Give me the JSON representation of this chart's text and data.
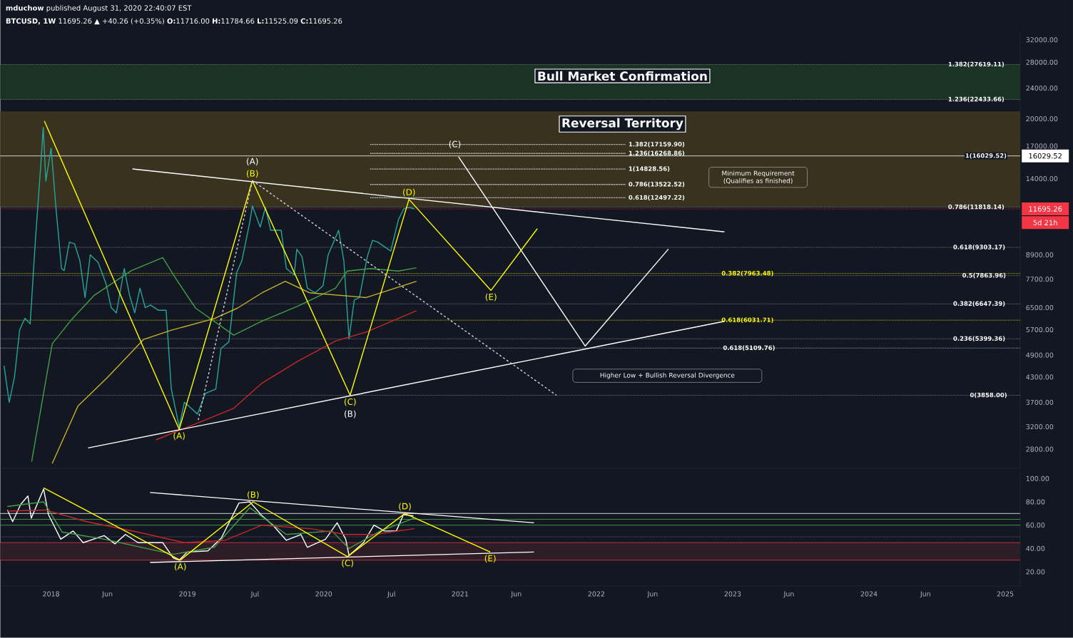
{
  "chart_data": [
    {
      "type": "line",
      "title": "**mduchow** published August 31, 2020 22:40:07 EST",
      "subtitle": "**BTCUSD, 1W** 11695.26 ▲ +40.26 (+0.35%) **O:**11716.00 **H:**11784.66 **L:**11525.09 **C:**11695.26",
      "log": true,
      "tick_labels": "y",
      "xlim": [
        "2017-08-18",
        "2025-02-10"
      ],
      "ylim": [
        2500,
        33500
      ],
      "yticks": [
        {
          "value": 2800,
          "label": "2800.00"
        },
        {
          "value": 3200,
          "label": "3200.00"
        },
        {
          "value": 3700,
          "label": "3700.00"
        },
        {
          "value": 4300,
          "label": "4300.00"
        },
        {
          "value": 4900,
          "label": "4900.00"
        },
        {
          "value": 5700,
          "label": "5700.00"
        },
        {
          "value": 6500,
          "label": "6500.00"
        },
        {
          "value": 7700,
          "label": "7700.00"
        },
        {
          "value": 8900,
          "label": "8900.00"
        },
        {
          "value": 14000,
          "label": "14000.00"
        },
        {
          "value": 17000,
          "label": "17000.00"
        },
        {
          "value": 20000,
          "label": "20000.00"
        },
        {
          "value": 24000,
          "label": "24000.00"
        },
        {
          "value": 28000,
          "label": "28000.00"
        },
        {
          "value": 32000,
          "label": "32000.00"
        }
      ],
      "bands": [
        {
          "axis": "y",
          "from": 22433.66,
          "to": 27619.11,
          "label": "Bull Market Confirmation",
          "color": "#1b3324"
        },
        {
          "axis": "y",
          "from": 11818.14,
          "to": 20900,
          "label": "Reversal Territory",
          "color": "#38321f"
        }
      ],
      "ref_lines": [
        {
          "axis": "y",
          "value": 27619.11,
          "color": "#9598a1",
          "line_style": "dotted"
        },
        {
          "axis": "y",
          "value": 22433.66,
          "color": "#9598a1",
          "line_style": "dotted"
        },
        {
          "axis": "y",
          "value": 16029.52,
          "label": "16029.52",
          "color": "#ffffff",
          "line_style": "solid"
        },
        {
          "axis": "y",
          "value": 11818.14,
          "color": "#9598a1",
          "line_style": "dotted"
        },
        {
          "axis": "y",
          "value": 9303.17,
          "color": "#9598a1",
          "line_style": "dotted"
        },
        {
          "axis": "y",
          "value": 7863.96,
          "color": "#9598a1",
          "line_style": "dotted"
        },
        {
          "axis": "y",
          "value": 6647.39,
          "color": "#9598a1",
          "line_style": "dotted"
        },
        {
          "axis": "y",
          "value": 5399.36,
          "color": "#9598a1",
          "line_style": "dotted"
        },
        {
          "axis": "y",
          "value": 3858.0,
          "color": "#9598a1",
          "line_style": "dotted"
        },
        {
          "axis": "y",
          "value": 7963.48,
          "color": "#ffff00",
          "line_style": "dotted"
        },
        {
          "axis": "y",
          "value": 6031.71,
          "color": "#ffff00",
          "line_style": "dotted"
        },
        {
          "axis": "y",
          "value": 5109.76,
          "color": "#d1d4dc",
          "line_style": "dotted"
        },
        {
          "axis": "y",
          "value": 11695.26,
          "label": "11695.26",
          "color": "#f23645",
          "line_style": "dotted"
        }
      ],
      "series": [
        {
          "color": "#26a69a",
          "x": [
            "2017-08-28",
            "2017-09-11",
            "2017-09-25",
            "2017-10-09",
            "2017-10-23",
            "2017-11-06",
            "2017-11-20",
            "2017-12-04",
            "2017-12-11",
            "2017-12-18",
            "2018-01-01",
            "2018-01-15",
            "2018-01-29",
            "2018-02-05",
            "2018-02-19",
            "2018-03-05",
            "2018-03-19",
            "2018-04-02",
            "2018-04-16",
            "2018-05-07",
            "2018-05-28",
            "2018-06-11",
            "2018-06-25",
            "2018-07-16",
            "2018-07-30",
            "2018-08-13",
            "2018-08-27",
            "2018-09-10",
            "2018-09-24",
            "2018-10-15",
            "2018-11-05",
            "2018-11-19",
            "2018-12-10",
            "2018-12-24",
            "2019-01-07",
            "2019-01-28",
            "2019-02-18",
            "2019-03-18",
            "2019-04-01",
            "2019-04-22",
            "2019-05-13",
            "2019-05-27",
            "2019-06-17",
            "2019-06-24",
            "2019-07-15",
            "2019-07-29",
            "2019-08-12",
            "2019-08-26",
            "2019-09-09",
            "2019-09-23",
            "2019-10-14",
            "2019-10-21",
            "2019-11-04",
            "2019-11-18",
            "2019-12-09",
            "2019-12-30",
            "2020-01-13",
            "2020-02-10",
            "2020-02-24",
            "2020-03-09",
            "2020-03-23",
            "2020-04-06",
            "2020-04-27",
            "2020-05-11",
            "2020-05-25",
            "2020-06-15",
            "2020-06-29",
            "2020-07-20",
            "2020-08-03",
            "2020-08-17",
            "2020-08-31"
          ],
          "values": [
            4600,
            3700,
            4300,
            5700,
            6100,
            5900,
            9700,
            15000,
            19000,
            13800,
            16800,
            11500,
            8200,
            8100,
            9600,
            9500,
            8600,
            6900,
            8900,
            8500,
            7500,
            6500,
            6300,
            8200,
            7000,
            6300,
            7300,
            6500,
            6600,
            6400,
            6400,
            4000,
            3200,
            3700,
            3600,
            3450,
            3900,
            4000,
            5100,
            5300,
            8000,
            8600,
            10800,
            11900,
            10500,
            11800,
            10300,
            10300,
            10300,
            8200,
            7900,
            9200,
            8800,
            7300,
            7100,
            7400,
            8900,
            10300,
            8600,
            5400,
            6800,
            6900,
            8800,
            9700,
            9600,
            9300,
            9100,
            11000,
            11700,
            11800,
            11695.26
          ]
        },
        {
          "color": "#43a047",
          "x": [
            "2017-11-10",
            "2018-01-04",
            "2018-02-24",
            "2018-04-27",
            "2018-08-04",
            "2018-10-27",
            "2018-12-02",
            "2019-01-23",
            "2019-05-05",
            "2019-07-20",
            "2019-10-23",
            "2020-02-02",
            "2020-03-04",
            "2020-05-05",
            "2020-07-20",
            "2020-09-06"
          ],
          "values": [
            2600,
            5240,
            6040,
            7000,
            8100,
            8750,
            7700,
            6480,
            5520,
            6000,
            6550,
            7300,
            8080,
            8200,
            8080,
            8240
          ]
        },
        {
          "color": "#c9b32c",
          "x": [
            "2018-01-04",
            "2018-03-14",
            "2018-05-30",
            "2018-09-06",
            "2018-11-18",
            "2019-03-14",
            "2019-05-15",
            "2019-07-20",
            "2019-09-20",
            "2019-11-24",
            "2020-04-24",
            "2020-09-06"
          ],
          "values": [
            2570,
            3620,
            4270,
            5380,
            5680,
            6090,
            6480,
            7100,
            7600,
            7100,
            6900,
            7600
          ]
        },
        {
          "color": "#c62828",
          "x": [
            "2018-10-09",
            "2019-05-05",
            "2019-07-20",
            "2019-10-23",
            "2020-02-02",
            "2020-04-24",
            "2020-09-06"
          ],
          "values": [
            2960,
            3570,
            4150,
            4720,
            5330,
            5620,
            6380
          ]
        },
        {
          "color": "#ffff00",
          "x": [
            "2017-12-14",
            "2018-12-10",
            "2019-06-24",
            "2020-03-12",
            "2020-08-17",
            "2021-03-25"
          ],
          "values": [
            19740,
            3150,
            13840,
            3858,
            12380,
            7200
          ]
        },
        {
          "color": "#ffff00",
          "x": [
            "2021-03-25",
            "2021-07-27"
          ],
          "values": [
            7200,
            10400
          ]
        },
        {
          "color": "#ffffff",
          "x": [
            "2018-08-07",
            "2022-12-10"
          ],
          "values": [
            14830,
            10200
          ]
        },
        {
          "color": "#ffffff",
          "x": [
            "2018-04-10",
            "2022-12-10"
          ],
          "values": [
            2820,
            5990
          ]
        },
        {
          "color": "#d1d4dc",
          "line_style": "dashed",
          "x": [
            "2019-06-24",
            "2021-09-16"
          ],
          "values": [
            13840,
            3860
          ]
        },
        {
          "color": "#d1d4dc",
          "line_style": "dashed",
          "x": [
            "2019-01-30",
            "2019-06-24"
          ],
          "values": [
            3330,
            13840
          ]
        },
        {
          "color": "#ffffff",
          "x": [
            "2020-12-28",
            "2021-12-02",
            "2022-07-13"
          ],
          "values": [
            15950,
            5170,
            9210
          ]
        },
        {
          "color": "#d1d4dc",
          "line_style": "dotted",
          "x": [
            "2020-05-05",
            "2022-03-20"
          ],
          "values": [
            17159.9,
            17159.9
          ]
        },
        {
          "color": "#d1d4dc",
          "line_style": "dotted",
          "x": [
            "2020-05-05",
            "2022-03-20"
          ],
          "values": [
            16268.86,
            16268.86
          ]
        },
        {
          "color": "#d1d4dc",
          "line_style": "dotted",
          "x": [
            "2020-05-05",
            "2022-03-20"
          ],
          "values": [
            14828.56,
            14828.56
          ]
        },
        {
          "color": "#d1d4dc",
          "line_style": "dotted",
          "x": [
            "2020-05-05",
            "2022-03-20"
          ],
          "values": [
            13522.52,
            13522.52
          ]
        },
        {
          "color": "#d1d4dc",
          "line_style": "dotted",
          "x": [
            "2020-05-05",
            "2022-03-20"
          ],
          "values": [
            12497.22,
            12497.22
          ]
        }
      ],
      "annotations": [
        {
          "text": "(A)",
          "x": "2019-06-24",
          "y": 13840
        },
        {
          "text": "(B)",
          "x": "2019-06-24",
          "y": 13840
        },
        {
          "text": "(A)",
          "x": "2018-12-10",
          "y": 3150
        },
        {
          "text": "(C)",
          "x": "2020-03-12",
          "y": 3858
        },
        {
          "text": "(B)",
          "x": "2020-03-12",
          "y": 3858
        },
        {
          "text": "(D)",
          "x": "2020-08-17",
          "y": 12380
        },
        {
          "text": "(E)",
          "x": "2021-03-25",
          "y": 7200
        },
        {
          "text": "(C)",
          "x": "2020-12-18",
          "y": 17160
        },
        "Minimum Requirement (Qualifies as finished)",
        "Higher Low + Bullish Reversal Divergence",
        {
          "text": "1.382(27619.11)",
          "x": "2024-10-15",
          "y": 27619.11
        },
        {
          "text": "1.236(22433.66)",
          "x": "2024-10-15",
          "y": 22433.66
        },
        {
          "text": "1(16029.52)",
          "x": "2024-11-10",
          "y": 16029.52
        },
        {
          "text": "0.786(11818.14)",
          "x": "2024-10-15",
          "y": 11818.14
        },
        {
          "text": "0.618(9303.17)",
          "x": "2024-10-23",
          "y": 9303.17
        },
        {
          "text": "0.5(7863.96)",
          "x": "2024-11-05",
          "y": 7863.96
        },
        {
          "text": "0.382(6647.39)",
          "x": "2024-10-23",
          "y": 6647.39
        },
        {
          "text": "0.236(5399.36)",
          "x": "2024-10-23",
          "y": 5399.36
        },
        {
          "text": "0(3858.00)",
          "x": "2024-11-17",
          "y": 3858.0
        },
        {
          "text": "1.382(17159.90)",
          "x": "2022-03-20",
          "y": 17159.9
        },
        {
          "text": "1.236(16268.86)",
          "x": "2022-03-20",
          "y": 16268.86
        },
        {
          "text": "1(14828.56)",
          "x": "2022-03-20",
          "y": 14828.56
        },
        {
          "text": "0.786(13522.52)",
          "x": "2022-03-20",
          "y": 13522.52
        },
        {
          "text": "0.618(12497.22)",
          "x": "2022-03-20",
          "y": 12497.22
        },
        {
          "text": "0.382(7963.48)",
          "x": "2023-02-10",
          "y": 7963.48
        },
        {
          "text": "0.618(6031.71)",
          "x": "2023-02-10",
          "y": 6031.71
        },
        {
          "text": "0.618(5109.76)",
          "x": "2023-02-14",
          "y": 5109.76
        },
        "5d 21h"
      ]
    },
    {
      "type": "line",
      "xlim": [
        "2017-08-18",
        "2025-02-10"
      ],
      "ylim": [
        8,
        107
      ],
      "xticks": [
        {
          "value": "2018-01-01",
          "label": "2018"
        },
        {
          "value": "2018-06-01",
          "label": "Jun"
        },
        {
          "value": "2019-01-01",
          "label": "2019"
        },
        {
          "value": "2019-07-01",
          "label": "Jul"
        },
        {
          "value": "2020-01-01",
          "label": "2020"
        },
        {
          "value": "2020-07-01",
          "label": "Jul"
        },
        {
          "value": "2021-01-01",
          "label": "2021"
        },
        {
          "value": "2021-06-01",
          "label": "Jun"
        },
        {
          "value": "2022-01-01",
          "label": "2022"
        },
        {
          "value": "2022-06-01",
          "label": "Jun"
        },
        {
          "value": "2023-01-01",
          "label": "2023"
        },
        {
          "value": "2023-06-01",
          "label": "Jun"
        },
        {
          "value": "2024-01-01",
          "label": "2024"
        },
        {
          "value": "2024-06-01",
          "label": "Jun"
        },
        {
          "value": "2025-01-01",
          "label": "2025"
        }
      ],
      "yticks": [
        {
          "value": 20,
          "label": "20.00"
        },
        {
          "value": 40,
          "label": "40.00"
        },
        {
          "value": 60,
          "label": "60.00"
        },
        {
          "value": 80,
          "label": "80.00"
        },
        {
          "value": 100,
          "label": "100.00"
        }
      ],
      "bands": [
        {
          "axis": "y",
          "from": 30,
          "to": 45,
          "color": "#2c1d26"
        }
      ],
      "ref_lines": [
        {
          "axis": "y",
          "value": 70,
          "color": "#ffffff",
          "line_style": "solid"
        },
        {
          "axis": "y",
          "value": 65,
          "color": "#4caf50",
          "line_style": "solid"
        },
        {
          "axis": "y",
          "value": 60,
          "color": "#4caf50",
          "line_style": "solid"
        },
        {
          "axis": "y",
          "value": 50,
          "color": "#787b86",
          "line_style": "dotted"
        },
        {
          "axis": "y",
          "value": 45,
          "color": "#f23645",
          "line_style": "solid"
        },
        {
          "axis": "y",
          "value": 30,
          "color": "#f23645",
          "line_style": "solid"
        }
      ],
      "series": [
        {
          "color": "#ffffff",
          "x": [
            "2017-09-06",
            "2017-09-20",
            "2017-10-12",
            "2017-10-31",
            "2017-11-09",
            "2017-12-12",
            "2017-12-25",
            "2018-01-27",
            "2018-03-01",
            "2018-03-28",
            "2018-05-23",
            "2018-06-21",
            "2018-07-19",
            "2018-08-22",
            "2018-10-27",
            "2018-11-24",
            "2018-12-10",
            "2019-01-01",
            "2019-02-25",
            "2019-04-02",
            "2019-05-19",
            "2019-06-17",
            "2019-07-20",
            "2019-08-18",
            "2019-09-23",
            "2019-11-01",
            "2019-11-18",
            "2020-01-06",
            "2020-02-06",
            "2020-02-29",
            "2020-03-09",
            "2020-04-17",
            "2020-05-15",
            "2020-06-12",
            "2020-07-14",
            "2020-08-02",
            "2020-08-29"
          ],
          "values": [
            73,
            63,
            78,
            85,
            66,
            91,
            69,
            48,
            55,
            45,
            51,
            44,
            52,
            45,
            45,
            32,
            30,
            37,
            38,
            49,
            79,
            80,
            68,
            60,
            47,
            52,
            41,
            48,
            62,
            48,
            34,
            45,
            60,
            55,
            55,
            69,
            68
          ]
        },
        {
          "color": "#43a047",
          "x": [
            "2017-09-06",
            "2017-12-12",
            "2018-01-31",
            "2018-05-23",
            "2018-11-24",
            "2019-03-14",
            "2019-06-17",
            "2019-09-23",
            "2020-01-23",
            "2020-03-09",
            "2020-06-01",
            "2020-08-31"
          ],
          "values": [
            76,
            80,
            54,
            48,
            35,
            41,
            75,
            52,
            55,
            40,
            55,
            66
          ]
        },
        {
          "color": "#c62828",
          "x": [
            "2017-09-06",
            "2017-12-16",
            "2018-04-06",
            "2018-08-22",
            "2018-12-24",
            "2019-04-12",
            "2019-07-20",
            "2019-11-26",
            "2020-02-29",
            "2020-05-15",
            "2020-08-31"
          ],
          "values": [
            72,
            73,
            63,
            54,
            45,
            47,
            60,
            57,
            52,
            52,
            57
          ]
        },
        {
          "color": "#ffff00",
          "x": [
            "2017-12-12",
            "2018-12-13",
            "2019-06-26",
            "2020-03-05",
            "2020-08-06",
            "2021-03-23"
          ],
          "values": [
            92,
            30,
            80,
            33,
            70,
            37
          ]
        },
        {
          "color": "#ffffff",
          "x": [
            "2018-09-23",
            "2021-07-18"
          ],
          "values": [
            88,
            62
          ]
        },
        {
          "color": "#ffffff",
          "x": [
            "2018-09-23",
            "2021-07-18"
          ],
          "values": [
            28,
            37
          ]
        }
      ],
      "annotations": [
        {
          "text": "(B)",
          "x": "2019-06-26",
          "y": 80
        },
        {
          "text": "(A)",
          "x": "2018-12-13",
          "y": 30
        },
        {
          "text": "(C)",
          "x": "2020-03-05",
          "y": 33
        },
        {
          "text": "(D)",
          "x": "2020-08-06",
          "y": 70
        },
        {
          "text": "(E)",
          "x": "2021-03-23",
          "y": 37
        }
      ]
    }
  ]
}
